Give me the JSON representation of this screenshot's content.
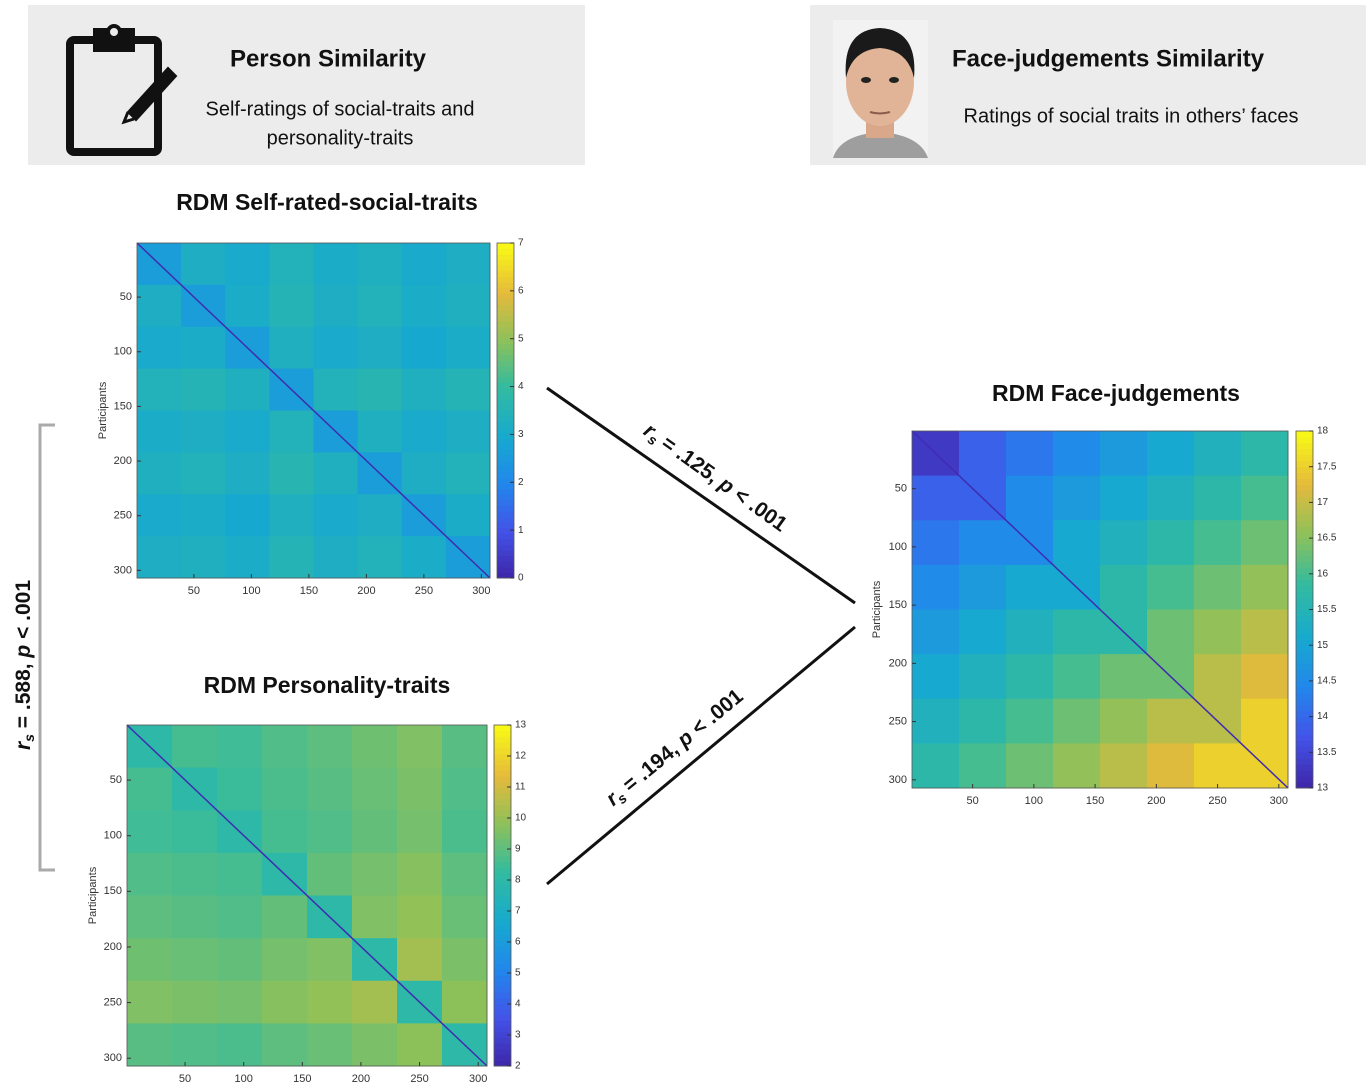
{
  "headers": [
    {
      "title": "Person Similarity",
      "lines": [
        "Self-ratings of social-traits and",
        "personality-traits"
      ]
    },
    {
      "title": "Face-judgements Similarity",
      "lines": [
        "Ratings of social traits in others’ faces"
      ]
    }
  ],
  "chart_data": [
    {
      "type": "heatmap",
      "title": "RDM Self-rated-social-traits",
      "y_label": "Participants",
      "xlim": [
        0.5,
        307.5
      ],
      "ylim": [
        0.5,
        307
      ],
      "xticks": [
        50,
        100,
        150,
        200,
        250,
        300
      ],
      "yticks": [
        50,
        100,
        150,
        200,
        250,
        300
      ],
      "zlim": [
        0,
        7
      ],
      "zticks": [
        0,
        1,
        2,
        3,
        4,
        5,
        6,
        7
      ],
      "values": [
        [
          2.6,
          3.2,
          3.0,
          3.4,
          3.1,
          3.3,
          3.0,
          3.2
        ],
        [
          3.2,
          2.6,
          3.1,
          3.5,
          3.2,
          3.4,
          3.1,
          3.3
        ],
        [
          3.0,
          3.1,
          2.6,
          3.3,
          3.0,
          3.2,
          2.9,
          3.1
        ],
        [
          3.4,
          3.5,
          3.3,
          2.6,
          3.4,
          3.6,
          3.3,
          3.5
        ],
        [
          3.1,
          3.2,
          3.0,
          3.4,
          2.6,
          3.3,
          3.0,
          3.2
        ],
        [
          3.3,
          3.4,
          3.2,
          3.6,
          3.3,
          2.6,
          3.2,
          3.4
        ],
        [
          3.0,
          3.1,
          2.9,
          3.3,
          3.0,
          3.2,
          2.6,
          3.1
        ],
        [
          3.2,
          3.3,
          3.1,
          3.5,
          3.2,
          3.4,
          3.1,
          2.6
        ]
      ]
    },
    {
      "type": "heatmap",
      "title": "RDM Personality-traits",
      "y_label": "Participants",
      "xlim": [
        0.5,
        307.5
      ],
      "ylim": [
        0.5,
        307
      ],
      "xticks": [
        50,
        100,
        150,
        200,
        250,
        300
      ],
      "yticks": [
        50,
        100,
        150,
        200,
        250,
        300
      ],
      "zlim": [
        2,
        13
      ],
      "zticks": [
        2,
        3,
        4,
        5,
        6,
        7,
        8,
        9,
        10,
        11,
        12,
        13
      ],
      "values": [
        [
          8.0,
          8.6,
          8.5,
          8.8,
          9.0,
          9.3,
          9.6,
          8.9
        ],
        [
          8.6,
          8.0,
          8.4,
          8.7,
          8.9,
          9.2,
          9.5,
          8.8
        ],
        [
          8.5,
          8.4,
          8.0,
          8.6,
          8.8,
          9.1,
          9.4,
          8.7
        ],
        [
          8.8,
          8.7,
          8.6,
          8.0,
          9.1,
          9.4,
          9.7,
          9.0
        ],
        [
          9.0,
          8.9,
          8.8,
          9.1,
          8.0,
          9.6,
          9.9,
          9.2
        ],
        [
          9.3,
          9.2,
          9.1,
          9.4,
          9.6,
          8.0,
          10.2,
          9.5
        ],
        [
          9.6,
          9.5,
          9.4,
          9.7,
          9.9,
          10.2,
          8.0,
          9.8
        ],
        [
          8.9,
          8.8,
          8.7,
          9.0,
          9.2,
          9.5,
          9.8,
          8.0
        ]
      ]
    },
    {
      "type": "heatmap",
      "title": "RDM Face-judgements",
      "y_label": "Participants",
      "xlim": [
        0.5,
        307.5
      ],
      "ylim": [
        0.5,
        307
      ],
      "xticks": [
        50,
        100,
        150,
        200,
        250,
        300
      ],
      "yticks": [
        50,
        100,
        150,
        200,
        250,
        300
      ],
      "zlim": [
        13,
        18
      ],
      "zticks": [
        13,
        13.5,
        14,
        14.5,
        15,
        15.5,
        16,
        16.5,
        17,
        17.5,
        18
      ],
      "values": [
        [
          13.3,
          13.9,
          14.2,
          14.5,
          14.8,
          15.1,
          15.4,
          15.7
        ],
        [
          13.9,
          13.9,
          14.5,
          14.8,
          15.1,
          15.4,
          15.7,
          16.0
        ],
        [
          14.2,
          14.5,
          14.5,
          15.1,
          15.4,
          15.7,
          16.0,
          16.3
        ],
        [
          14.5,
          14.8,
          15.1,
          15.1,
          15.7,
          16.0,
          16.3,
          16.6
        ],
        [
          14.8,
          15.1,
          15.4,
          15.7,
          15.7,
          16.3,
          16.6,
          16.9
        ],
        [
          15.1,
          15.4,
          15.7,
          16.0,
          16.3,
          16.3,
          16.9,
          17.2
        ],
        [
          15.4,
          15.7,
          16.0,
          16.3,
          16.6,
          16.9,
          16.9,
          17.5
        ],
        [
          15.7,
          16.0,
          16.3,
          16.6,
          16.9,
          17.2,
          17.5,
          17.5
        ]
      ]
    }
  ],
  "correlations": [
    [
      "r",
      "s",
      " = .125, ",
      "p",
      " < .001"
    ],
    [
      "r",
      "s",
      " = .194, ",
      "p",
      " < .001"
    ],
    [
      "r",
      "s",
      " = .588, ",
      "p",
      " < .001"
    ]
  ]
}
